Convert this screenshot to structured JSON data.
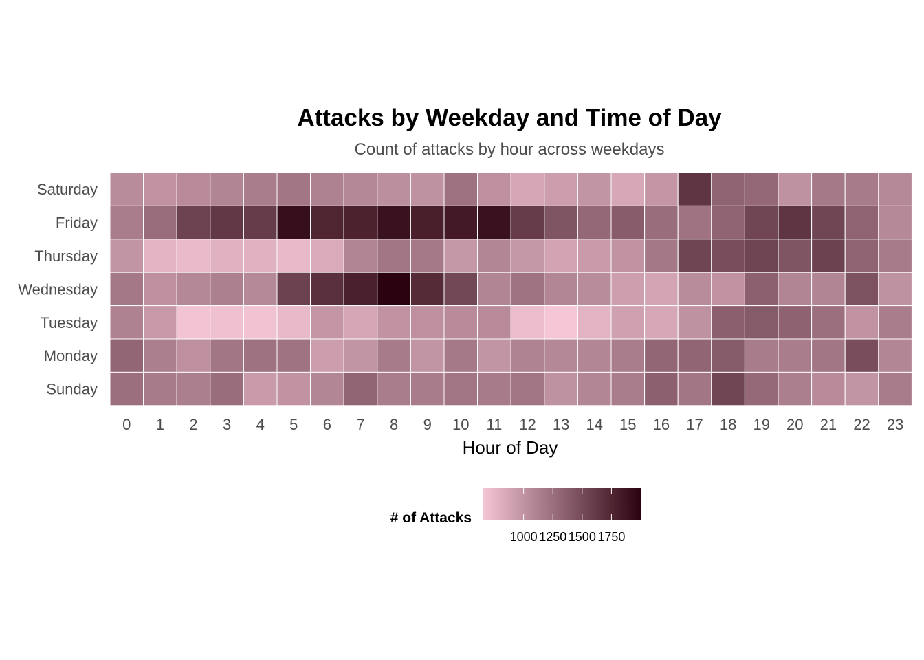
{
  "chart_data": {
    "type": "heatmap",
    "title": "Attacks by Weekday and Time of Day",
    "subtitle": "Count of attacks by hour across weekdays",
    "xlabel": "Hour of Day",
    "ylabel": "",
    "x": [
      "0",
      "1",
      "2",
      "3",
      "4",
      "5",
      "6",
      "7",
      "8",
      "9",
      "10",
      "11",
      "12",
      "13",
      "14",
      "15",
      "16",
      "17",
      "18",
      "19",
      "20",
      "21",
      "22",
      "23"
    ],
    "y": [
      "Saturday",
      "Friday",
      "Thursday",
      "Wednesday",
      "Tuesday",
      "Monday",
      "Sunday"
    ],
    "values": [
      [
        1050,
        1000,
        1060,
        1100,
        1150,
        1200,
        1120,
        1080,
        1030,
        1010,
        1230,
        1020,
        870,
        930,
        990,
        860,
        980,
        1650,
        1330,
        1300,
        1010,
        1180,
        1170,
        1070
      ],
      [
        1150,
        1270,
        1550,
        1630,
        1600,
        1920,
        1760,
        1780,
        1900,
        1800,
        1840,
        1900,
        1600,
        1430,
        1300,
        1380,
        1260,
        1220,
        1330,
        1530,
        1650,
        1530,
        1330,
        1070
      ],
      [
        990,
        770,
        730,
        790,
        790,
        740,
        840,
        1100,
        1200,
        1180,
        970,
        1090,
        970,
        890,
        950,
        1000,
        1190,
        1540,
        1480,
        1540,
        1430,
        1560,
        1330,
        1170
      ],
      [
        1190,
        1020,
        1080,
        1130,
        1070,
        1560,
        1680,
        1790,
        2000,
        1720,
        1520,
        1100,
        1220,
        1090,
        1050,
        920,
        880,
        1050,
        1000,
        1350,
        1100,
        1100,
        1450,
        1010
      ],
      [
        1120,
        960,
        670,
        690,
        680,
        740,
        980,
        870,
        1000,
        1020,
        1060,
        1060,
        720,
        650,
        780,
        910,
        860,
        1010,
        1360,
        1390,
        1340,
        1250,
        1000,
        1150
      ],
      [
        1310,
        1140,
        1020,
        1200,
        1230,
        1220,
        930,
        990,
        1170,
        990,
        1180,
        990,
        1110,
        1080,
        1090,
        1150,
        1310,
        1320,
        1390,
        1160,
        1150,
        1200,
        1480,
        1090
      ],
      [
        1250,
        1170,
        1140,
        1260,
        950,
        1000,
        1090,
        1320,
        1150,
        1160,
        1210,
        1170,
        1210,
        1010,
        1090,
        1150,
        1350,
        1200,
        1530,
        1290,
        1140,
        1060,
        990,
        1160
      ]
    ],
    "value_range": [
      650,
      2000
    ],
    "color_low": "#f5c6d6",
    "color_high": "#2b020f",
    "legend": {
      "title": "# of Attacks",
      "placement": "bottom",
      "breaks": [
        1000,
        1250,
        1500,
        1750
      ],
      "labels": [
        "1000",
        "1250",
        "1500",
        "1750"
      ]
    },
    "grid": false
  }
}
